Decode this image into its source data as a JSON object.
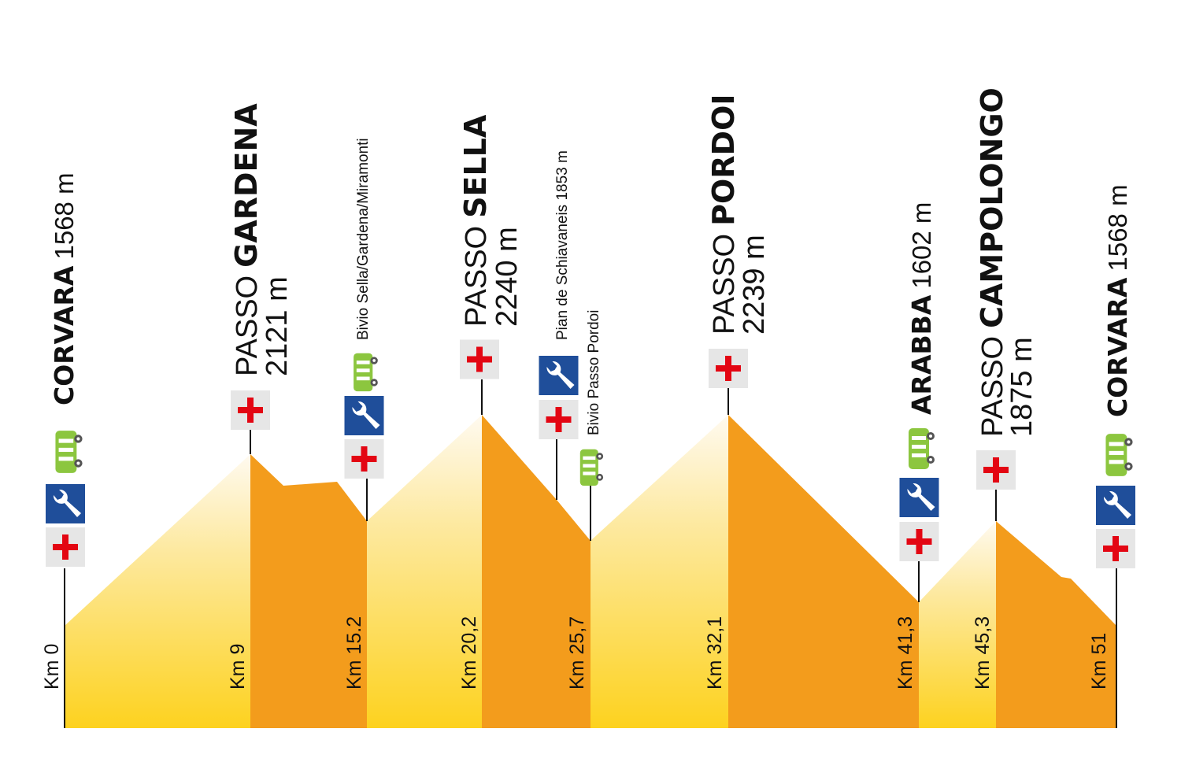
{
  "stops": [
    {
      "km": "Km 0",
      "name": "CORVARA",
      "elevation": "1568 m"
    },
    {
      "km": "Km 9",
      "prefix": "PASSO",
      "name": "GARDENA",
      "elevation": "2121 m"
    },
    {
      "km": "Km 15.2",
      "note": "Bivio Sella/Gardena/Miramonti"
    },
    {
      "km": "Km 20,2",
      "prefix": "PASSO",
      "name": "SELLA",
      "elevation": "2240 m"
    },
    {
      "note": "Pian de Schiavaneis 1853 m"
    },
    {
      "km": "Km 25,7",
      "note": "Bivio Passo Pordoi"
    },
    {
      "km": "Km 32,1",
      "prefix": "PASSO",
      "name": "PORDOI",
      "elevation": "2239 m"
    },
    {
      "km": "Km 41,3",
      "name": "ARABBA",
      "elevation": "1602 m"
    },
    {
      "km": "Km 45,3",
      "prefix": "PASSO",
      "name": "CAMPOLONGO",
      "elevation": "1875 m"
    },
    {
      "km": "Km 51",
      "name": "CORVARA",
      "elevation": "1568 m"
    }
  ]
}
